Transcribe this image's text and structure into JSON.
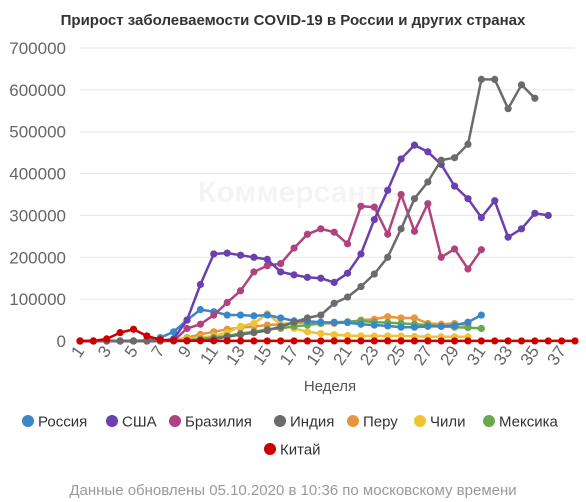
{
  "chart_data": {
    "type": "line",
    "title": "Прирост заболеваемости COVID-19 в России и других странах",
    "xlabel": "Неделя",
    "ylabel": "",
    "xlim": [
      1,
      38
    ],
    "ylim": [
      0,
      700000
    ],
    "yticks": [
      0,
      100000,
      200000,
      300000,
      400000,
      500000,
      600000,
      700000
    ],
    "xticks": [
      1,
      3,
      5,
      7,
      9,
      11,
      13,
      15,
      17,
      19,
      21,
      23,
      25,
      27,
      29,
      31,
      33,
      35,
      37
    ],
    "grid": true,
    "legend_position": "bottom",
    "watermark": "Коммерсантъ",
    "series": [
      {
        "name": "Россия",
        "color": "#3a86c8",
        "x": [
          1,
          2,
          3,
          4,
          5,
          6,
          7,
          8,
          9,
          10,
          11,
          12,
          13,
          14,
          15,
          16,
          17,
          18,
          19,
          20,
          21,
          22,
          23,
          24,
          25,
          26,
          27,
          28,
          29,
          30,
          31
        ],
        "y": [
          0,
          0,
          0,
          0,
          0,
          2000,
          8000,
          22000,
          50000,
          75000,
          70000,
          62000,
          62000,
          60000,
          62000,
          55000,
          48000,
          47000,
          45000,
          44000,
          44000,
          40000,
          38000,
          36000,
          33000,
          33000,
          35000,
          35000,
          37000,
          45000,
          62000
        ]
      },
      {
        "name": "США",
        "color": "#6a3fae",
        "x": [
          1,
          2,
          3,
          4,
          5,
          6,
          7,
          8,
          9,
          10,
          11,
          12,
          13,
          14,
          15,
          16,
          17,
          18,
          19,
          20,
          21,
          22,
          23,
          24,
          25,
          26,
          27,
          28,
          29,
          30,
          31,
          32,
          33,
          34,
          35,
          36
        ],
        "y": [
          0,
          0,
          0,
          0,
          0,
          0,
          0,
          5000,
          50000,
          135000,
          208000,
          210000,
          205000,
          200000,
          195000,
          165000,
          158000,
          152000,
          150000,
          140000,
          162000,
          208000,
          290000,
          360000,
          435000,
          468000,
          452000,
          422000,
          370000,
          340000,
          295000,
          335000,
          248000,
          268000,
          305000,
          300000
        ]
      },
      {
        "name": "Бразилия",
        "color": "#b0437d",
        "x": [
          1,
          2,
          3,
          4,
          5,
          6,
          7,
          8,
          9,
          10,
          11,
          12,
          13,
          14,
          15,
          16,
          17,
          18,
          19,
          20,
          21,
          22,
          23,
          24,
          25,
          26,
          27,
          28,
          29,
          30,
          31
        ],
        "y": [
          0,
          0,
          0,
          0,
          0,
          0,
          0,
          0,
          30000,
          40000,
          62000,
          92000,
          120000,
          165000,
          180000,
          185000,
          222000,
          255000,
          268000,
          260000,
          232000,
          322000,
          320000,
          255000,
          350000,
          262000,
          328000,
          200000,
          220000,
          172000,
          218000
        ]
      },
      {
        "name": "Индия",
        "color": "#6b6b6b",
        "x": [
          1,
          2,
          3,
          4,
          5,
          6,
          7,
          8,
          9,
          10,
          11,
          12,
          13,
          14,
          15,
          16,
          17,
          18,
          19,
          20,
          21,
          22,
          23,
          24,
          25,
          26,
          27,
          28,
          29,
          30,
          31,
          32,
          33,
          34,
          35
        ],
        "y": [
          0,
          0,
          0,
          0,
          0,
          0,
          0,
          0,
          0,
          2000,
          5000,
          10000,
          15000,
          20000,
          25000,
          35000,
          45000,
          55000,
          62000,
          90000,
          105000,
          130000,
          160000,
          200000,
          268000,
          340000,
          380000,
          432000,
          438000,
          470000,
          625000,
          625000,
          555000,
          612000,
          580000
        ]
      },
      {
        "name": "Перу",
        "color": "#e7953e",
        "x": [
          1,
          2,
          3,
          4,
          5,
          6,
          7,
          8,
          9,
          10,
          11,
          12,
          13,
          14,
          15,
          16,
          17,
          18,
          19,
          20,
          21,
          22,
          23,
          24,
          25,
          26,
          27,
          28,
          29,
          30
        ],
        "y": [
          0,
          0,
          0,
          0,
          0,
          0,
          0,
          2000,
          8000,
          16000,
          22000,
          28000,
          32000,
          35000,
          38000,
          40000,
          43000,
          45000,
          42000,
          42000,
          45000,
          50000,
          52000,
          58000,
          55000,
          55000,
          42000,
          40000,
          42000,
          38000
        ]
      },
      {
        "name": "Чили",
        "color": "#f1c232",
        "x": [
          1,
          2,
          3,
          4,
          5,
          6,
          7,
          8,
          9,
          10,
          11,
          12,
          13,
          14,
          15,
          16,
          17,
          18,
          19,
          20,
          21,
          22,
          23,
          24,
          25,
          26,
          27,
          28,
          29,
          30
        ],
        "y": [
          0,
          0,
          0,
          0,
          0,
          0,
          0,
          2000,
          5000,
          8000,
          12000,
          20000,
          35000,
          42000,
          65000,
          40000,
          30000,
          22000,
          18000,
          15000,
          13000,
          12000,
          12000,
          12000,
          12000,
          11000,
          10000,
          10000,
          10000,
          10000
        ]
      },
      {
        "name": "Мексика",
        "color": "#6aa84f",
        "x": [
          1,
          2,
          3,
          4,
          5,
          6,
          7,
          8,
          9,
          10,
          11,
          12,
          13,
          14,
          15,
          16,
          17,
          18,
          19,
          20,
          21,
          22,
          23,
          24,
          25,
          26,
          27,
          28,
          29,
          30,
          31
        ],
        "y": [
          0,
          0,
          0,
          0,
          0,
          0,
          0,
          1000,
          2000,
          5000,
          8000,
          12000,
          18000,
          22000,
          28000,
          30000,
          35000,
          38000,
          42000,
          45000,
          46000,
          48000,
          45000,
          44000,
          42000,
          40000,
          38000,
          35000,
          33000,
          32000,
          30000
        ]
      },
      {
        "name": "Китай",
        "color": "#cc0000",
        "x": [
          1,
          2,
          3,
          4,
          5,
          6,
          7,
          8,
          9,
          10,
          11,
          12,
          13,
          14,
          15,
          16,
          17,
          18,
          19,
          20,
          21,
          22,
          23,
          24,
          25,
          26,
          27,
          28,
          29,
          30,
          31,
          32,
          33,
          34,
          35,
          36,
          37,
          38
        ],
        "y": [
          0,
          0,
          5000,
          20000,
          28000,
          12000,
          3000,
          1000,
          500,
          500,
          300,
          300,
          200,
          200,
          200,
          200,
          200,
          200,
          200,
          200,
          200,
          200,
          200,
          200,
          200,
          200,
          200,
          200,
          200,
          200,
          200,
          200,
          200,
          200,
          200,
          200,
          200,
          200
        ]
      }
    ]
  },
  "footer": "Данные обновлены 05.10.2020 в 10:36 по московскому времени"
}
